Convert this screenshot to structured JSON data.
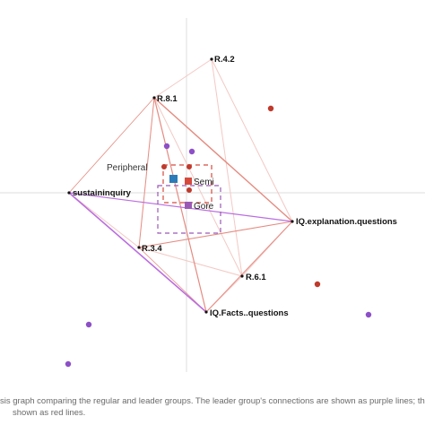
{
  "graph": {
    "colors": {
      "leader_edge": "#b05ad8",
      "regular_edge": "#e07a6f",
      "faint_edge": "#f2c5c0",
      "leader_point": "#8d4fc7",
      "regular_point": "#c0392b",
      "axis": "#dddddd",
      "label": "#111111",
      "box_red": "#d64a3d",
      "box_purple": "#9b59b6",
      "box_blue": "#2b7bb9"
    },
    "nodes": [
      {
        "id": "r42",
        "label": "R.4.2"
      },
      {
        "id": "r81",
        "label": "R.8.1"
      },
      {
        "id": "sus",
        "label": "sustaininquiry"
      },
      {
        "id": "iqe",
        "label": "IQ.explanation.questions"
      },
      {
        "id": "r34",
        "label": "R.3.4"
      },
      {
        "id": "r61",
        "label": "R.6.1"
      },
      {
        "id": "iqf",
        "label": "IQ.Facts..questions"
      }
    ],
    "groups": {
      "semi": "Semi",
      "gore": "Gore",
      "peripheral": "Peripheral"
    }
  },
  "caption": {
    "line1": "sis graph comparing the regular and leader groups. The leader group's connections are shown as purple lines; th",
    "line2": "shown as red lines."
  }
}
